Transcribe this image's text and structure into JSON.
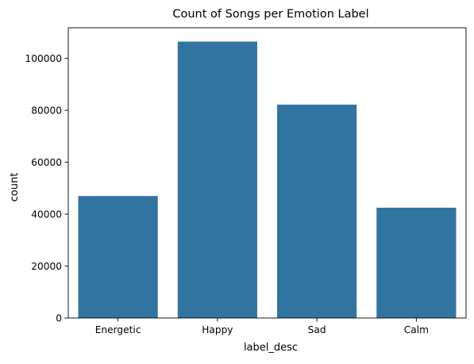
{
  "chart_data": {
    "type": "bar",
    "title": "Count of Songs per Emotion Label",
    "xlabel": "label_desc",
    "ylabel": "count",
    "categories": [
      "Energetic",
      "Happy",
      "Sad",
      "Calm"
    ],
    "values": [
      47000,
      106500,
      82200,
      42500
    ],
    "ylim": [
      0,
      111825
    ],
    "yticks": [
      0,
      20000,
      40000,
      60000,
      80000,
      100000
    ],
    "grid": false,
    "legend": "none",
    "bar_color": "#3274a1"
  }
}
